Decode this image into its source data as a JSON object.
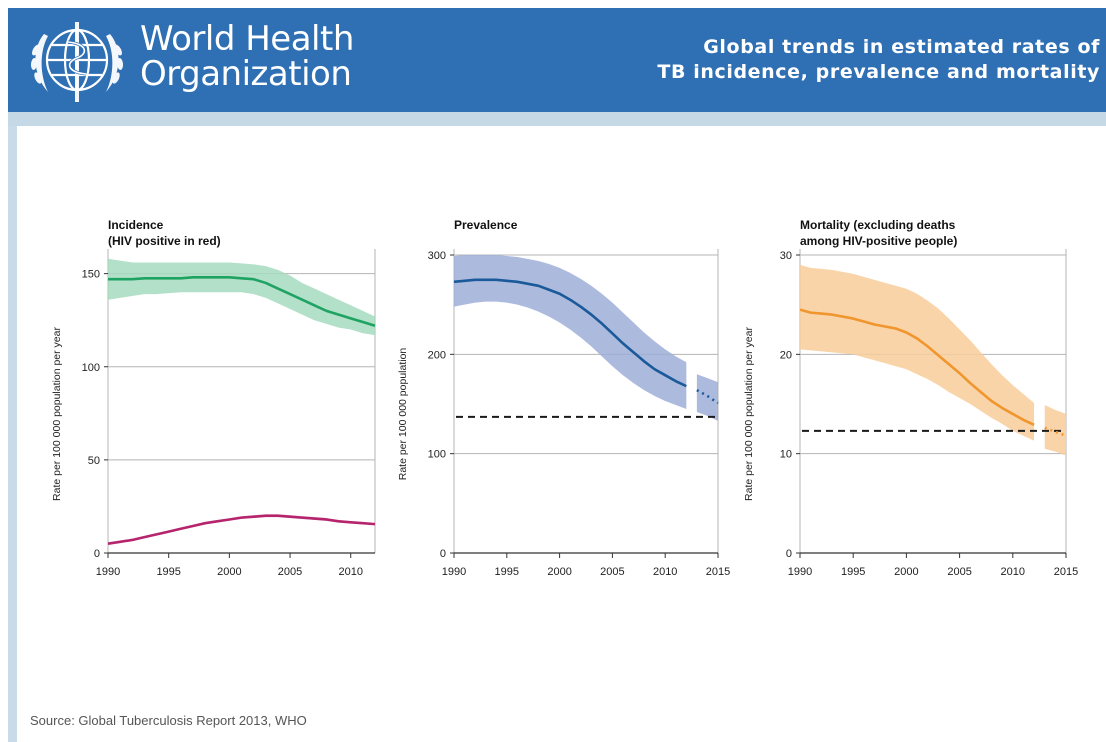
{
  "header": {
    "org_name_line1": "World Health",
    "org_name_line2": "Organization",
    "title_line1": "Global trends in estimated rates of",
    "title_line2": "TB incidence, prevalence and mortality",
    "logo": "who-emblem-icon"
  },
  "source": "Source: Global Tuberculosis Report 2013, WHO",
  "colors": {
    "header_bg": "#2f6fb3",
    "incidence": "#1fa363",
    "incidence_band": "#a6dabf",
    "hiv": "#b5246d",
    "hiv_band": "#e3a9c4",
    "prevalence": "#1b5a9a",
    "prevalence_band": "#9eaed8",
    "mortality": "#f0962e",
    "mortality_band": "#f9cc9a",
    "target_line": "#1a1a1a"
  },
  "chart_data": [
    {
      "type": "line",
      "title": "Incidence",
      "subtitle": "(HIV positive in red)",
      "ylabel": "Rate per 100 000 population per year",
      "xlabel": "",
      "xlim": [
        1990,
        2012
      ],
      "ylim": [
        0,
        160
      ],
      "xticks": [
        1990,
        1995,
        2000,
        2005,
        2010
      ],
      "yticks": [
        0,
        50,
        100,
        150
      ],
      "grid": true,
      "series": [
        {
          "name": "",
          "color": "#1fa363",
          "band_color": "#a6dabf",
          "x": [
            1990,
            1991,
            1992,
            1993,
            1994,
            1995,
            1996,
            1997,
            1998,
            1999,
            2000,
            2001,
            2002,
            2003,
            2004,
            2005,
            2006,
            2007,
            2008,
            2009,
            2010,
            2011,
            2012
          ],
          "values": [
            147,
            147,
            147,
            147.5,
            147.5,
            147.5,
            147.5,
            148,
            148,
            148,
            148,
            147.5,
            147,
            145,
            142,
            139,
            136,
            133,
            130,
            128,
            126,
            124,
            122
          ],
          "lower": [
            136,
            137,
            138,
            139,
            139,
            139.5,
            140,
            140,
            140,
            140,
            140,
            140,
            139,
            137,
            134,
            131,
            128,
            125,
            123,
            121,
            120,
            118,
            117
          ],
          "upper": [
            158,
            157,
            156,
            156,
            156,
            156,
            156,
            156,
            156,
            156,
            156,
            155.5,
            155,
            154,
            152,
            149,
            145,
            142,
            139,
            136,
            133,
            130,
            127
          ]
        },
        {
          "name": "HIV positive",
          "color": "#b5246d",
          "band_color": "#e3a9c4",
          "x": [
            1990,
            1991,
            1992,
            1993,
            1994,
            1995,
            1996,
            1997,
            1998,
            1999,
            2000,
            2001,
            2002,
            2003,
            2004,
            2005,
            2006,
            2007,
            2008,
            2009,
            2010,
            2011,
            2012
          ],
          "values": [
            5,
            6,
            7,
            8.5,
            10,
            11.5,
            13,
            14.5,
            16,
            17,
            18,
            19,
            19.5,
            20,
            20,
            19.5,
            19,
            18.5,
            18,
            17,
            16.5,
            16,
            15.5
          ],
          "lower": [
            4.5,
            5.5,
            6.5,
            8,
            9.5,
            11,
            12.5,
            14,
            15.5,
            16.5,
            17.5,
            18.3,
            18.8,
            19.2,
            19.2,
            18.8,
            18.2,
            17.8,
            17.2,
            16.4,
            16,
            15.5,
            15
          ],
          "upper": [
            5.5,
            6.5,
            7.5,
            9,
            10.5,
            12,
            13.5,
            15,
            16.5,
            17.5,
            18.5,
            19.7,
            20.3,
            20.9,
            20.9,
            20.3,
            19.8,
            19.3,
            18.8,
            17.7,
            17,
            16.5,
            16
          ]
        }
      ]
    },
    {
      "type": "line",
      "title": "Prevalence",
      "ylabel": "Rate per 100 000 population",
      "xlabel": "",
      "xlim": [
        1990,
        2015
      ],
      "ylim": [
        0,
        300
      ],
      "xticks": [
        1990,
        1995,
        2000,
        2005,
        2010,
        2015
      ],
      "yticks": [
        0,
        100,
        200,
        300
      ],
      "grid": true,
      "target": 137,
      "series": [
        {
          "name": "",
          "color": "#1b5a9a",
          "band_color": "#9eaed8",
          "x": [
            1990,
            1991,
            1992,
            1993,
            1994,
            1995,
            1996,
            1997,
            1998,
            1999,
            2000,
            2001,
            2002,
            2003,
            2004,
            2005,
            2006,
            2007,
            2008,
            2009,
            2010,
            2011,
            2012
          ],
          "values": [
            273,
            274,
            275,
            275,
            275,
            274,
            273,
            271,
            269,
            265,
            261,
            255,
            248,
            240,
            231,
            221,
            211,
            202,
            193,
            185,
            179,
            173,
            168
          ],
          "lower": [
            248,
            250,
            252,
            253,
            253,
            252,
            250,
            247,
            243,
            238,
            232,
            225,
            217,
            208,
            198,
            188,
            179,
            171,
            164,
            158,
            153,
            149,
            145
          ],
          "upper": [
            299,
            300,
            300,
            300,
            300,
            299,
            298,
            296,
            294,
            291,
            287,
            282,
            276,
            269,
            261,
            252,
            242,
            232,
            222,
            213,
            205,
            198,
            192
          ]
        },
        {
          "name": "",
          "projection": true,
          "color": "#1b5a9a",
          "band_color": "#9eaed8",
          "x": [
            2013,
            2014,
            2015
          ],
          "values": [
            164,
            158,
            151
          ],
          "lower": [
            142,
            138,
            133
          ],
          "upper": [
            180,
            176,
            172
          ]
        }
      ]
    },
    {
      "type": "line",
      "title": "Mortality (excluding deaths",
      "subtitle": "among HIV-positive people)",
      "ylabel": "Rate per 100 000 population per year",
      "xlabel": "",
      "xlim": [
        1990,
        2015
      ],
      "ylim": [
        0,
        30
      ],
      "xticks": [
        1990,
        1995,
        2000,
        2005,
        2010,
        2015
      ],
      "yticks": [
        0,
        10,
        20,
        30
      ],
      "grid": true,
      "target": 12.3,
      "series": [
        {
          "name": "",
          "color": "#f0962e",
          "band_color": "#f9cc9a",
          "x": [
            1990,
            1991,
            1992,
            1993,
            1994,
            1995,
            1996,
            1997,
            1998,
            1999,
            2000,
            2001,
            2002,
            2003,
            2004,
            2005,
            2006,
            2007,
            2008,
            2009,
            2010,
            2011,
            2012
          ],
          "values": [
            24.5,
            24.2,
            24.1,
            24,
            23.8,
            23.6,
            23.3,
            23,
            22.8,
            22.6,
            22.2,
            21.6,
            20.8,
            19.9,
            19,
            18.1,
            17.1,
            16.2,
            15.3,
            14.6,
            14,
            13.4,
            12.9
          ],
          "lower": [
            20.5,
            20.4,
            20.3,
            20.2,
            20.1,
            20,
            19.7,
            19.4,
            19.1,
            18.8,
            18.5,
            18,
            17.5,
            16.9,
            16.2,
            15.6,
            15,
            14.3,
            13.6,
            13,
            12.3,
            11.8,
            11.3
          ],
          "upper": [
            29,
            28.7,
            28.6,
            28.5,
            28.3,
            28.1,
            27.8,
            27.5,
            27.2,
            26.9,
            26.6,
            26.1,
            25.4,
            24.6,
            23.6,
            22.5,
            21.4,
            20.2,
            19,
            17.9,
            16.9,
            16,
            15.1
          ],
          "line_end_x": 2012
        },
        {
          "name": "",
          "projection": true,
          "color": "#f0962e",
          "band_color": "#f9cc9a",
          "x": [
            2013,
            2014,
            2015
          ],
          "values": [
            12.6,
            12.2,
            11.8
          ],
          "lower": [
            10.5,
            10.2,
            9.8
          ],
          "upper": [
            14.9,
            14.4,
            14
          ]
        }
      ]
    }
  ]
}
